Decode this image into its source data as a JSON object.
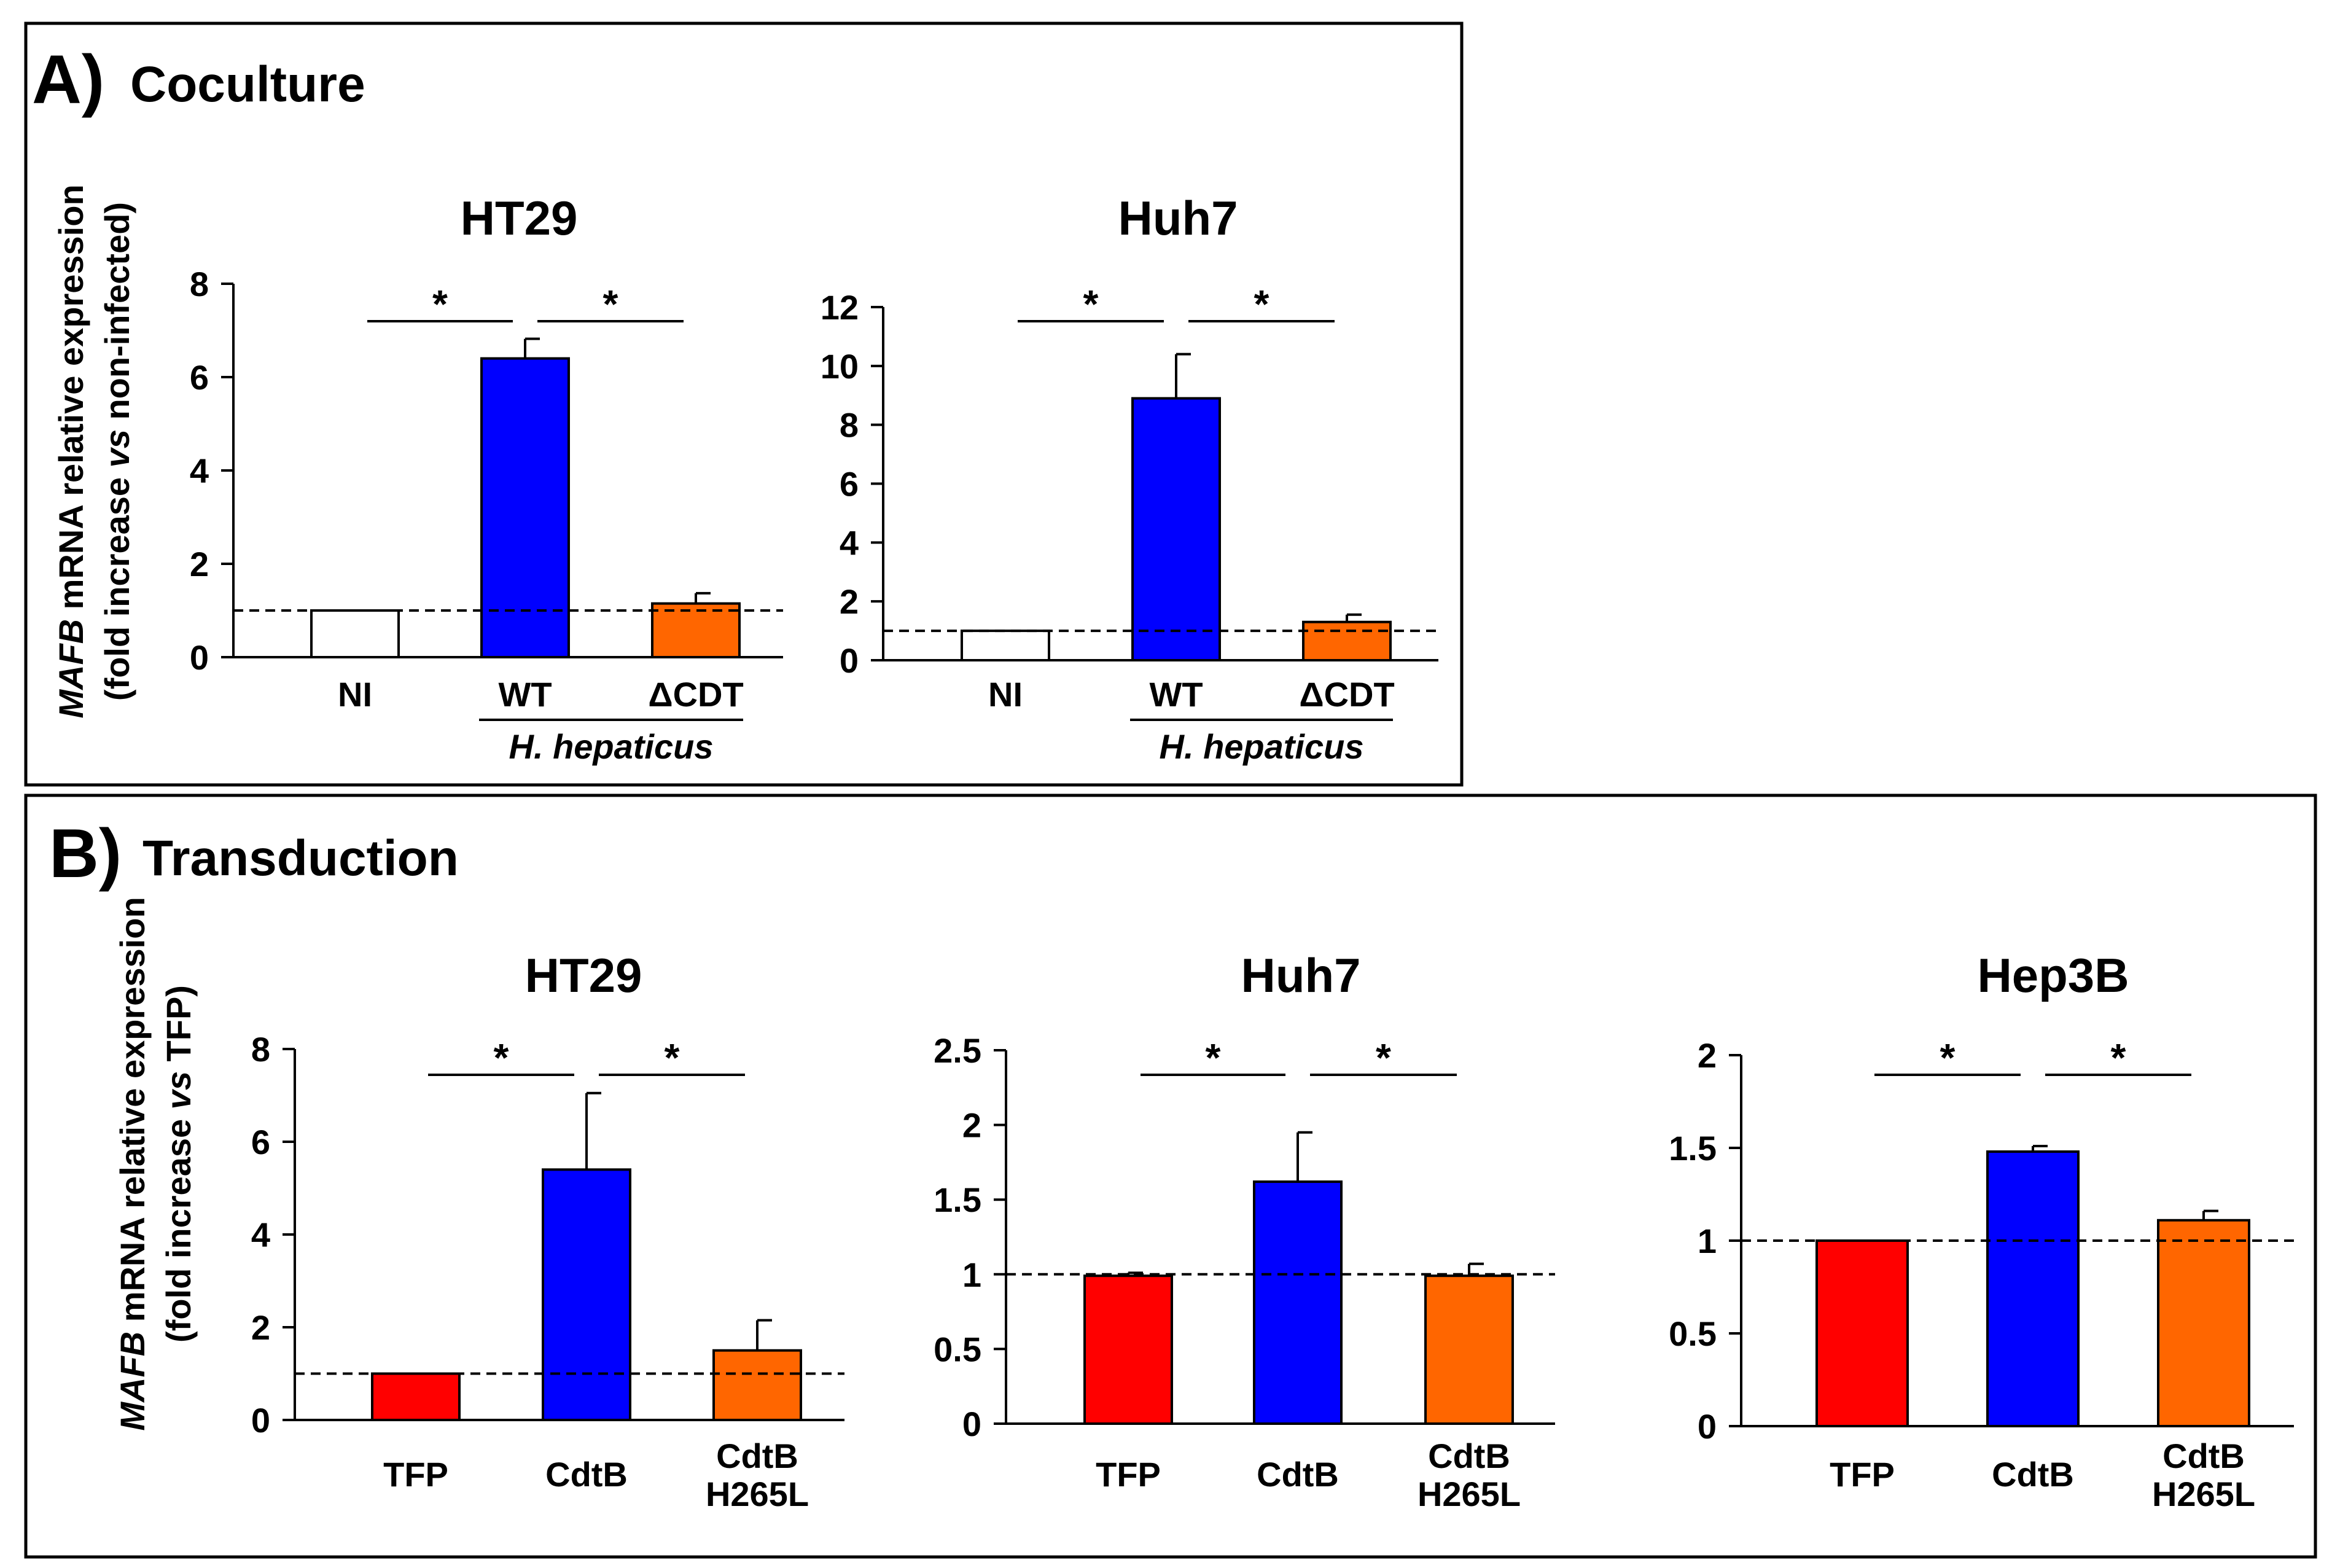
{
  "panels": [
    {
      "letter": "A)",
      "title": "Coculture"
    },
    {
      "letter": "B)",
      "title": "Transduction"
    }
  ],
  "ylabels": [
    {
      "gene": "MAFB",
      "line1_rest": " mRNA relative expression",
      "line2_a": "(fold increase ",
      "line2_vs": "vs",
      "line2_b": " non-infected)"
    },
    {
      "gene": "MAFB",
      "line1_rest": " mRNA relative expression",
      "line2_a": "(fold increase ",
      "line2_vs": "vs",
      "line2_b": " TFP)"
    }
  ],
  "colors": {
    "white": "#ffffff",
    "blue": "#0000ff",
    "orange": "#ff6600",
    "red": "#ff0000"
  },
  "chart_data": [
    {
      "type": "bar",
      "panel": "A",
      "title": "HT29",
      "categories": [
        "NI",
        "WT",
        "ΔCDT"
      ],
      "values": [
        1.0,
        6.4,
        1.15
      ],
      "errors": [
        0,
        0.42,
        0.22
      ],
      "bar_colors": [
        "white",
        "blue",
        "orange"
      ],
      "ylim": [
        0,
        8
      ],
      "yticks": [
        "0",
        "2",
        "4",
        "6",
        "8"
      ],
      "reference_line": 1,
      "group_label": "H. hepaticus",
      "significance": [
        {
          "pair": [
            0,
            1
          ],
          "label": "*"
        },
        {
          "pair": [
            1,
            2
          ],
          "label": "*"
        }
      ]
    },
    {
      "type": "bar",
      "panel": "A",
      "title": "Huh7",
      "categories": [
        "NI",
        "WT",
        "ΔCDT"
      ],
      "values": [
        1.0,
        8.9,
        1.3
      ],
      "errors": [
        0,
        1.5,
        0.25
      ],
      "bar_colors": [
        "white",
        "blue",
        "orange"
      ],
      "ylim": [
        0,
        12
      ],
      "yticks": [
        "0",
        "2",
        "4",
        "6",
        "8",
        "10",
        "12"
      ],
      "reference_line": 1,
      "group_label": "H. hepaticus",
      "significance": [
        {
          "pair": [
            0,
            1
          ],
          "label": "*"
        },
        {
          "pair": [
            1,
            2
          ],
          "label": "*"
        }
      ]
    },
    {
      "type": "bar",
      "panel": "B",
      "title": "HT29",
      "categories": [
        "TFP",
        "CdtB",
        "CdtB\nH265L"
      ],
      "values": [
        1.0,
        5.4,
        1.5
      ],
      "errors": [
        0,
        1.65,
        0.65
      ],
      "bar_colors": [
        "red",
        "blue",
        "orange"
      ],
      "ylim": [
        0,
        8
      ],
      "yticks": [
        "0",
        "2",
        "4",
        "6",
        "8"
      ],
      "reference_line": 1,
      "significance": [
        {
          "pair": [
            0,
            1
          ],
          "label": "*"
        },
        {
          "pair": [
            1,
            2
          ],
          "label": "*"
        }
      ]
    },
    {
      "type": "bar",
      "panel": "B",
      "title": "Huh7",
      "categories": [
        "TFP",
        "CdtB",
        "CdtB\nH265L"
      ],
      "values": [
        0.99,
        1.62,
        0.99
      ],
      "errors": [
        0.02,
        0.33,
        0.08
      ],
      "bar_colors": [
        "red",
        "blue",
        "orange"
      ],
      "ylim": [
        0,
        2.5
      ],
      "yticks": [
        "0",
        "0.5",
        "1",
        "1.5",
        "2",
        "2.5"
      ],
      "reference_line": 1,
      "significance": [
        {
          "pair": [
            0,
            1
          ],
          "label": "*"
        },
        {
          "pair": [
            1,
            2
          ],
          "label": "*"
        }
      ]
    },
    {
      "type": "bar",
      "panel": "B",
      "title": "Hep3B",
      "categories": [
        "TFP",
        "CdtB",
        "CdtB\nH265L"
      ],
      "values": [
        1.0,
        1.48,
        1.11
      ],
      "errors": [
        0,
        0.03,
        0.05
      ],
      "bar_colors": [
        "red",
        "blue",
        "orange"
      ],
      "ylim": [
        0,
        2
      ],
      "yticks": [
        "0",
        "0.5",
        "1",
        "1.5",
        "2"
      ],
      "reference_line": 1,
      "significance": [
        {
          "pair": [
            0,
            1
          ],
          "label": "*"
        },
        {
          "pair": [
            1,
            2
          ],
          "label": "*"
        }
      ]
    }
  ]
}
